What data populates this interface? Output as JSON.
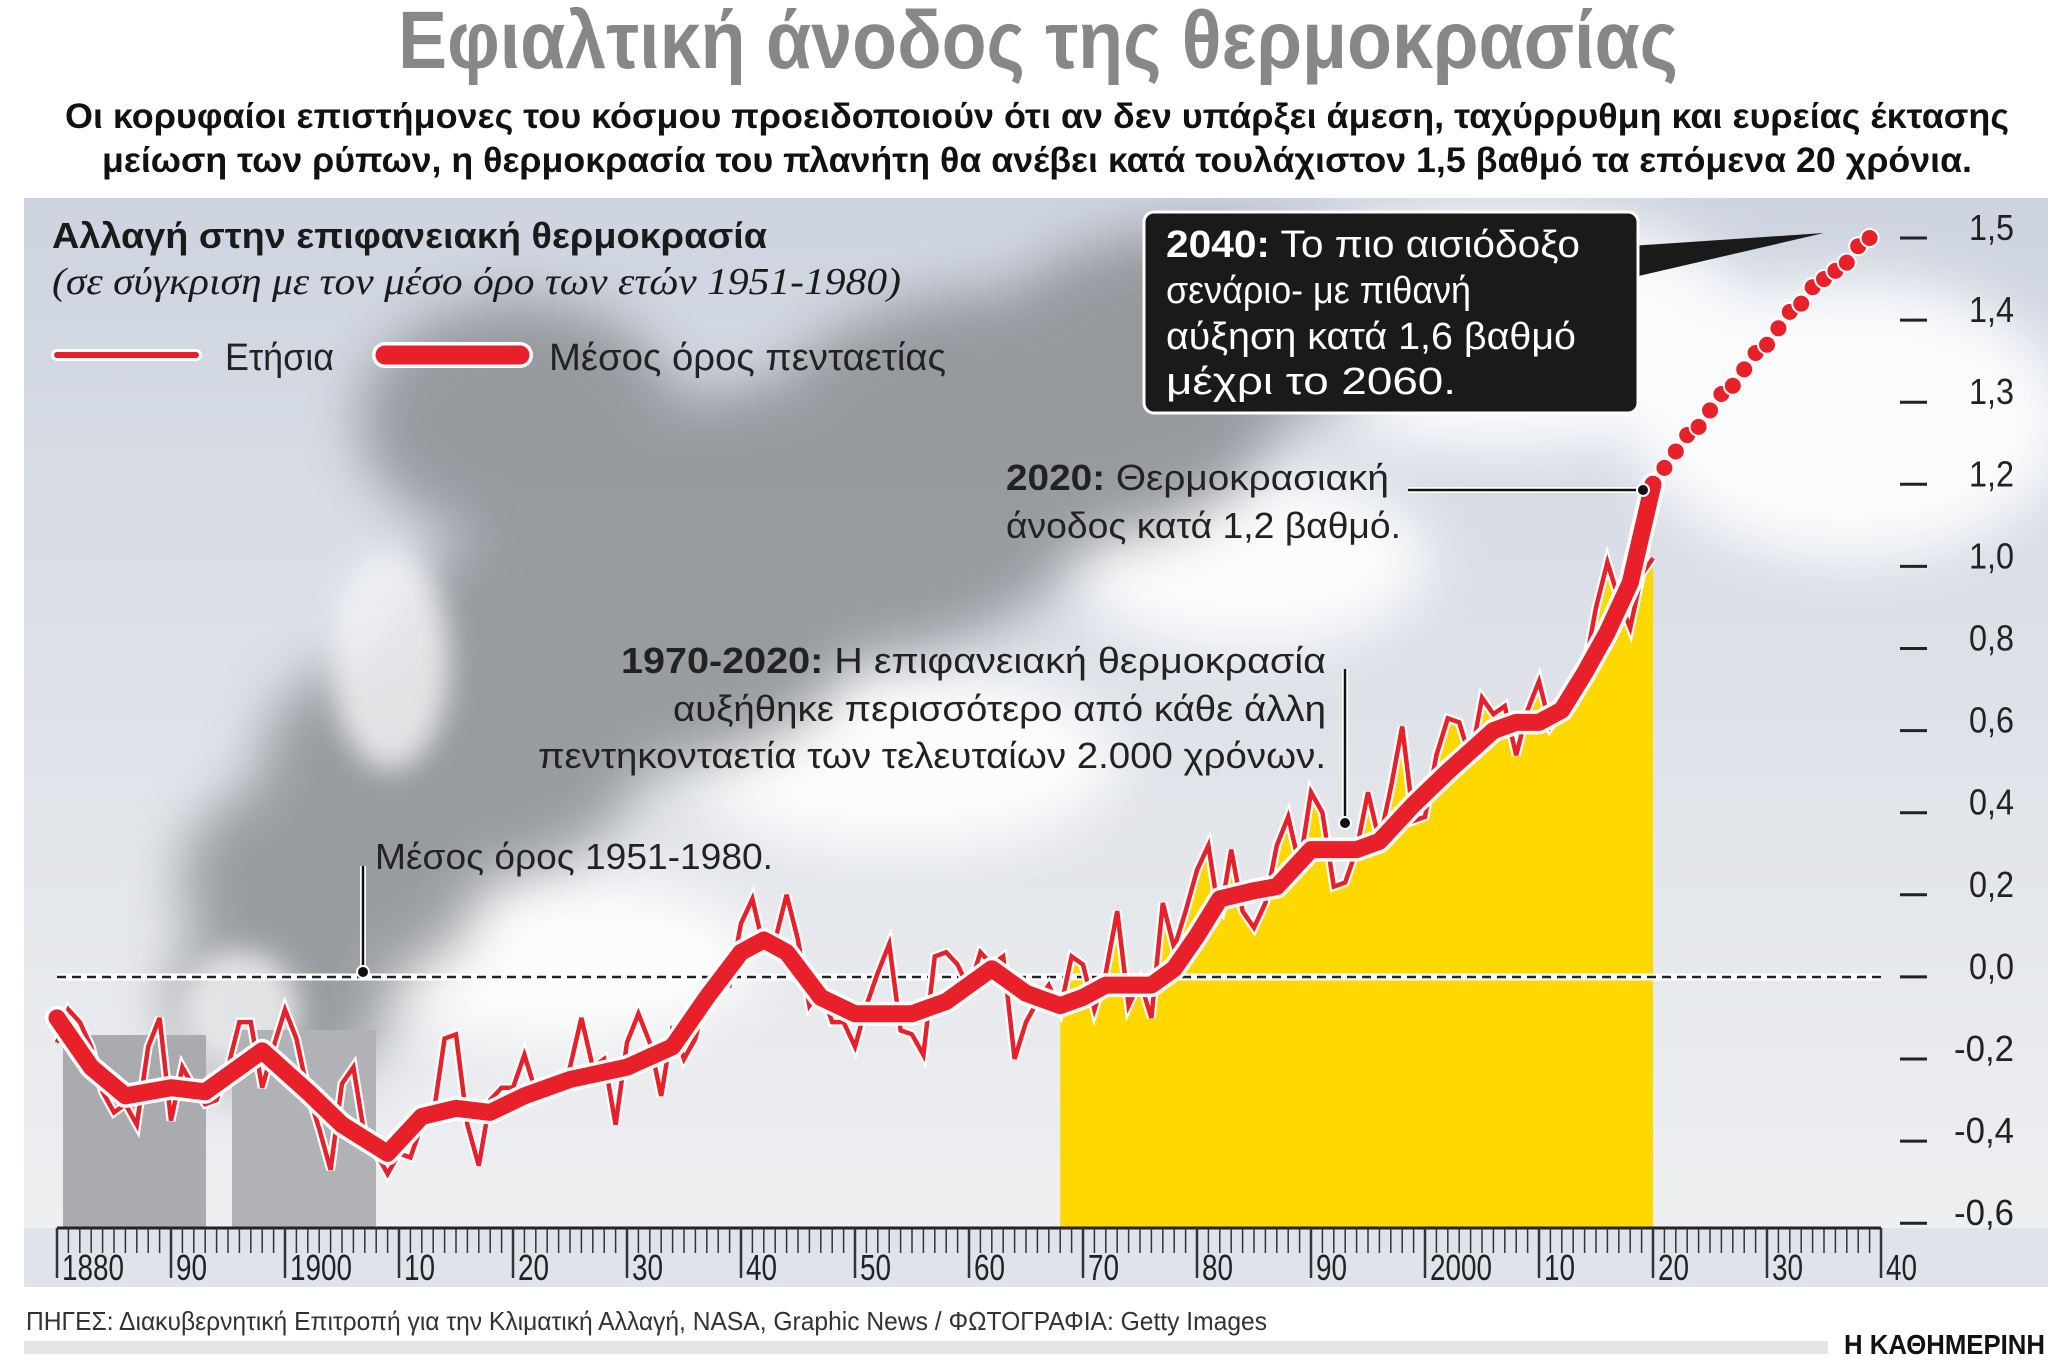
{
  "header": {
    "title": "Εφιαλτική άνοδος της θερμοκρασίας",
    "subtitle_lines": [
      "Οι κορυφαίοι επιστήμονες του κόσμου προειδοποιούν ότι αν δεν υπάρξει άμεση, ταχύρρυθμη και ευρείας έκτασης",
      "μείωση των ρύπων, η θερμοκρασία του πλανήτη θα ανέβει κατά τουλάχιστον 1,5 βαθμό τα επόμενα 20 χρόνια."
    ]
  },
  "chart_data": {
    "type": "line",
    "title": "Αλλαγή στην επιφανειακή θερμοκρασία",
    "subtitle": "(σε σύγκριση με τον μέσο όρο των ετών 1951-1980)",
    "xlim": [
      1880,
      2040
    ],
    "x_tick_labels": [
      "1880",
      "90",
      "1900",
      "10",
      "20",
      "30",
      "40",
      "50",
      "60",
      "70",
      "80",
      "90",
      "2000",
      "10",
      "20",
      "30",
      "40"
    ],
    "y_tick_values": [
      1.5,
      1.4,
      1.3,
      1.2,
      1.0,
      0.8,
      0.6,
      0.4,
      0.2,
      0.0,
      -0.2,
      -0.4,
      -0.6
    ],
    "y_tick_labels": [
      "1,5",
      "1,4",
      "1,3",
      "1,2",
      "1,0",
      "0,8",
      "0,6",
      "0,4",
      "0,2",
      "0,0",
      "-0,2",
      "-0,4",
      "-0,6"
    ],
    "y_scale": "piecewise, equal spacing between ticks",
    "legend_placement": "top-left",
    "baseline_value": 0.0,
    "colors": {
      "line": "#e8202a",
      "highlight_fill": "#ffd800",
      "callout_box": "#1a1a1a"
    },
    "highlight_range": [
      1968,
      2020
    ],
    "series": [
      {
        "name": "Ετήσια",
        "style": "thin",
        "x_start": 1880,
        "values": [
          -0.16,
          -0.08,
          -0.11,
          -0.17,
          -0.28,
          -0.33,
          -0.31,
          -0.36,
          -0.17,
          -0.1,
          -0.35,
          -0.22,
          -0.27,
          -0.31,
          -0.3,
          -0.22,
          -0.11,
          -0.11,
          -0.27,
          -0.17,
          -0.08,
          -0.15,
          -0.28,
          -0.37,
          -0.47,
          -0.26,
          -0.22,
          -0.39,
          -0.43,
          -0.48,
          -0.43,
          -0.44,
          -0.36,
          -0.34,
          -0.15,
          -0.14,
          -0.36,
          -0.46,
          -0.3,
          -0.27,
          -0.27,
          -0.19,
          -0.28,
          -0.26,
          -0.27,
          -0.22,
          -0.1,
          -0.22,
          -0.2,
          -0.36,
          -0.16,
          -0.09,
          -0.16,
          -0.29,
          -0.12,
          -0.2,
          -0.15,
          -0.03,
          -0.01,
          -0.02,
          0.13,
          0.19,
          0.07,
          0.09,
          0.2,
          0.09,
          -0.07,
          -0.03,
          -0.11,
          -0.11,
          -0.17,
          -0.07,
          0.01,
          0.08,
          -0.13,
          -0.14,
          -0.19,
          0.05,
          0.06,
          0.03,
          -0.03,
          0.06,
          0.03,
          0.05,
          -0.2,
          -0.11,
          -0.06,
          -0.02,
          -0.08,
          0.05,
          0.03,
          -0.08,
          0.01,
          0.16,
          -0.07,
          -0.01,
          -0.1,
          0.18,
          0.07,
          0.16,
          0.26,
          0.32,
          0.14,
          0.31,
          0.16,
          0.12,
          0.18,
          0.32,
          0.39,
          0.27,
          0.45,
          0.4,
          0.22,
          0.23,
          0.31,
          0.45,
          0.33,
          0.46,
          0.61,
          0.38,
          0.39,
          0.54,
          0.63,
          0.62,
          0.53,
          0.68,
          0.64,
          0.66,
          0.54,
          0.65,
          0.72,
          0.61,
          0.65,
          0.68,
          0.75,
          0.9,
          1.01,
          0.92,
          0.85,
          0.98,
          1.02
        ]
      },
      {
        "name": "Μέσος όρος πενταετίας",
        "style": "thick",
        "points": [
          [
            1880,
            -0.1
          ],
          [
            1883,
            -0.22
          ],
          [
            1886,
            -0.29
          ],
          [
            1890,
            -0.27
          ],
          [
            1893,
            -0.28
          ],
          [
            1895,
            -0.24
          ],
          [
            1898,
            -0.18
          ],
          [
            1902,
            -0.28
          ],
          [
            1905,
            -0.36
          ],
          [
            1909,
            -0.43
          ],
          [
            1912,
            -0.34
          ],
          [
            1915,
            -0.32
          ],
          [
            1918,
            -0.33
          ],
          [
            1921,
            -0.29
          ],
          [
            1925,
            -0.25
          ],
          [
            1930,
            -0.22
          ],
          [
            1934,
            -0.17
          ],
          [
            1937,
            -0.05
          ],
          [
            1940,
            0.06
          ],
          [
            1942,
            0.09
          ],
          [
            1944,
            0.06
          ],
          [
            1947,
            -0.05
          ],
          [
            1950,
            -0.09
          ],
          [
            1955,
            -0.09
          ],
          [
            1958,
            -0.06
          ],
          [
            1962,
            0.02
          ],
          [
            1965,
            -0.04
          ],
          [
            1968,
            -0.07
          ],
          [
            1970,
            -0.05
          ],
          [
            1972,
            -0.02
          ],
          [
            1976,
            -0.02
          ],
          [
            1978,
            0.02
          ],
          [
            1980,
            0.1
          ],
          [
            1982,
            0.19
          ],
          [
            1985,
            0.21
          ],
          [
            1987,
            0.22
          ],
          [
            1990,
            0.31
          ],
          [
            1994,
            0.31
          ],
          [
            1996,
            0.33
          ],
          [
            1999,
            0.42
          ],
          [
            2002,
            0.5
          ],
          [
            2004,
            0.55
          ],
          [
            2006,
            0.6
          ],
          [
            2008,
            0.62
          ],
          [
            2010,
            0.62
          ],
          [
            2012,
            0.65
          ],
          [
            2014,
            0.74
          ],
          [
            2016,
            0.84
          ],
          [
            2018,
            0.96
          ],
          [
            2020,
            1.2
          ]
        ]
      },
      {
        "style": "dotted projection",
        "points": [
          [
            2021,
            1.22
          ],
          [
            2022,
            1.24
          ],
          [
            2023,
            1.26
          ],
          [
            2024,
            1.27
          ],
          [
            2025,
            1.29
          ],
          [
            2026,
            1.31
          ],
          [
            2027,
            1.32
          ],
          [
            2028,
            1.34
          ],
          [
            2029,
            1.36
          ],
          [
            2030,
            1.37
          ],
          [
            2031,
            1.39
          ],
          [
            2032,
            1.41
          ],
          [
            2033,
            1.42
          ],
          [
            2034,
            1.44
          ],
          [
            2035,
            1.45
          ],
          [
            2036,
            1.46
          ],
          [
            2037,
            1.47
          ],
          [
            2038,
            1.49
          ],
          [
            2039,
            1.5
          ]
        ]
      }
    ],
    "annotations": {
      "projection": {
        "bold": "2040:",
        "lines": [
          " Το πιο αισιόδοξο",
          "σενάριο- με πιθανή",
          "αύξηση κατά 1,6 βαθμό",
          "μέχρι το 2060."
        ]
      },
      "year2020": {
        "bold": "2020:",
        "lines": [
          " Θερμοκρασιακή",
          "άνοδος κατά 1,2 βαθμό."
        ]
      },
      "period": {
        "bold": "1970-2020:",
        "lines": [
          " Η επιφανειακή θερμοκρασία",
          "αυξήθηκε περισσότερο από κάθε άλλη",
          "πεντηκονταετία των τελευταίων 2.000 χρόνων."
        ]
      },
      "baseline": {
        "text": "Μέσος όρος 1951-1980."
      }
    }
  },
  "footer": {
    "sources": "ΠΗΓΕΣ: Διακυβερνητική Επιτροπή για την Κλιματική Αλλαγή, NASA, Graphic News / ΦΩΤΟΓΡΑΦΙΑ: Getty Images",
    "publisher": "Η ΚΑΘΗΜΕΡΙΝΗ"
  }
}
